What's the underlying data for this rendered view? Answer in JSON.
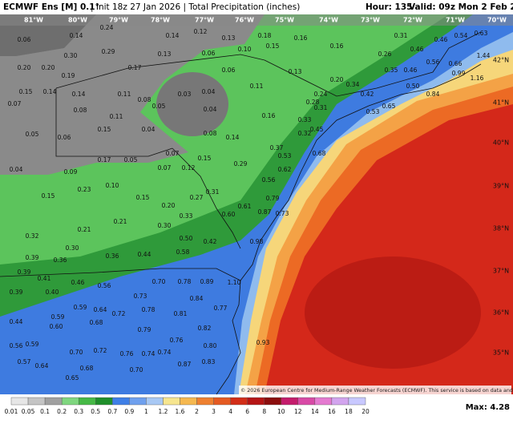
{
  "header": {
    "model": "ECMWF Ens [M] 0.1°",
    "rest": "| Init 18z 27 Jan 2026 | Total Precipitation (inches)",
    "hour": "Hour: 135",
    "valid": "Valid: 09z Mon 2 Feb 2026"
  },
  "lon_labels": [
    "81°W",
    "80°W",
    "79°W",
    "78°W",
    "77°W",
    "76°W",
    "75°W",
    "74°W",
    "73°W",
    "72°W",
    "71°W",
    "70°W"
  ],
  "lat_labels": [
    "42°N",
    "41°N",
    "40°N",
    "39°N",
    "38°N",
    "37°N",
    "36°N",
    "35°N"
  ],
  "points": [
    "0.06",
    "0.14",
    "0.24",
    "0.14",
    "0.12",
    "0.13",
    "0.18",
    "0.16",
    "0.16",
    "0.31",
    "0.46",
    "0.54",
    "0.63",
    "0.30",
    "0.29",
    "0.13",
    "0.06",
    "0.10",
    "0.15",
    "0.26",
    "0.46",
    "0.20",
    "0.20",
    "0.17",
    "0.06",
    "0.13",
    "0.20",
    "0.35",
    "0.46",
    "0.56",
    "0.66",
    "0.19",
    "0.15",
    "0.14",
    "0.14",
    "0.11",
    "0.08",
    "0.03",
    "0.04",
    "0.11",
    "0.34",
    "0.50",
    "0.07",
    "0.08",
    "0.05",
    "0.04",
    "0.28",
    "0.24",
    "0.42",
    "0.53",
    "0.65",
    "0.84",
    "0.11",
    "0.16",
    "0.31",
    "0.33",
    "0.15",
    "0.04",
    "0.08",
    "0.14",
    "0.06",
    "0.05",
    "0.45",
    "0.32",
    "0.37",
    "0.17",
    "0.05",
    "0.07",
    "0.07",
    "0.12",
    "0.15",
    "0.29",
    "0.53",
    "0.68",
    "0.04",
    "0.09",
    "0.62",
    "0.56",
    "0.23",
    "0.10",
    "0.15",
    "0.15",
    "0.27",
    "0.31",
    "0.79",
    "0.20",
    "0.60",
    "0.61",
    "0.87",
    "0.73",
    "0.33",
    "0.21",
    "0.30",
    "0.21",
    "0.32",
    "0.98",
    "0.50",
    "0.42",
    "0.30",
    "0.58",
    "0.39",
    "0.36",
    "0.36",
    "0.44",
    "0.39",
    "0.41",
    "0.46",
    "0.56",
    "0.70",
    "0.78",
    "0.89",
    "1.10",
    "0.39",
    "0.40",
    "0.73",
    "0.84",
    "0.59",
    "0.64",
    "0.72",
    "0.78",
    "0.81",
    "0.77",
    "0.44",
    "0.59",
    "0.60",
    "0.68",
    "0.79",
    "0.82",
    "0.59",
    "0.56",
    "0.70",
    "0.72",
    "0.76",
    "0.74",
    "0.74",
    "0.76",
    "0.80",
    "0.93",
    "0.57",
    "0.64",
    "0.68",
    "0.87",
    "0.65",
    "0.70",
    "0.83",
    "1.44",
    "0.99",
    "1.16"
  ],
  "copyright": "© 2026 European Centre for Medium-Range Weather Forecasts (ECMWF). This service is based on data and products of the ECMWF.",
  "scale": {
    "labels": [
      0.01,
      0.05,
      0.1,
      0.2,
      0.3,
      0.5,
      0.7,
      0.9,
      1,
      1.2,
      1.6,
      2,
      3,
      4,
      6,
      8,
      10,
      12,
      14,
      16,
      18,
      20
    ],
    "colors": [
      "#e6e6e6",
      "#c4c4c4",
      "#a0a0a0",
      "#7fd67f",
      "#46b946",
      "#1f8f2a",
      "#3f7fe6",
      "#6fa0ee",
      "#a8c8f4",
      "#f6e58f",
      "#f5b850",
      "#ee8030",
      "#e45a22",
      "#d22e18",
      "#b51515",
      "#8c0e0e",
      "#c41c6c",
      "#d84aa6",
      "#e47ad0",
      "#d2a4ee",
      "#c8c8ff"
    ]
  },
  "max": "Max: 4.28"
}
